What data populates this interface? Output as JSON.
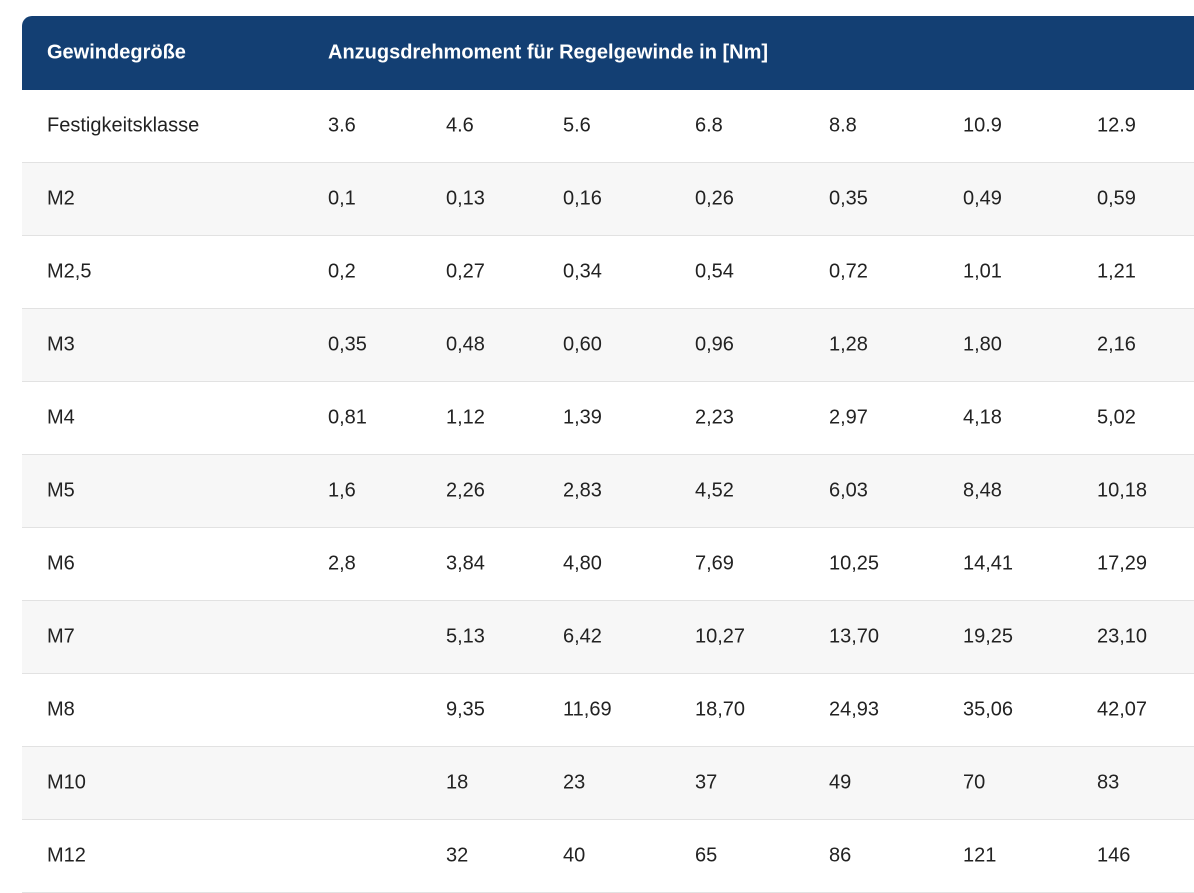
{
  "table": {
    "header": {
      "col_thread": "Gewindegröße",
      "col_torque": "Anzugsdrehmoment für Regelgewinde in [Nm]"
    },
    "rows": [
      {
        "label": "Festigkeitsklasse",
        "v": [
          "3.6",
          "4.6",
          "5.6",
          "6.8",
          "8.8",
          "10.9",
          "12.9"
        ]
      },
      {
        "label": "M2",
        "v": [
          "0,1",
          "0,13",
          "0,16",
          "0,26",
          "0,35",
          "0,49",
          "0,59"
        ]
      },
      {
        "label": "M2,5",
        "v": [
          "0,2",
          "0,27",
          "0,34",
          "0,54",
          "0,72",
          "1,01",
          "1,21"
        ]
      },
      {
        "label": "M3",
        "v": [
          "0,35",
          "0,48",
          "0,60",
          "0,96",
          "1,28",
          "1,80",
          "2,16"
        ]
      },
      {
        "label": "M4",
        "v": [
          "0,81",
          "1,12",
          "1,39",
          "2,23",
          "2,97",
          "4,18",
          "5,02"
        ]
      },
      {
        "label": "M5",
        "v": [
          "1,6",
          "2,26",
          "2,83",
          "4,52",
          "6,03",
          "8,48",
          "10,18"
        ]
      },
      {
        "label": "M6",
        "v": [
          "2,8",
          "3,84",
          "4,80",
          "7,69",
          "10,25",
          "14,41",
          "17,29"
        ]
      },
      {
        "label": "M7",
        "v": [
          "",
          "5,13",
          "6,42",
          "10,27",
          "13,70",
          "19,25",
          "23,10"
        ]
      },
      {
        "label": "M8",
        "v": [
          "",
          "9,35",
          "11,69",
          "18,70",
          "24,93",
          "35,06",
          "42,07"
        ]
      },
      {
        "label": "M10",
        "v": [
          "",
          "18",
          "23",
          "37",
          "49",
          "70",
          "83"
        ]
      },
      {
        "label": "M12",
        "v": [
          "",
          "32",
          "40",
          "65",
          "86",
          "121",
          "146"
        ]
      }
    ]
  },
  "colors": {
    "header_bg": "#133f73",
    "header_text": "#ffffff",
    "row_alt_bg": "#f7f7f7",
    "divider": "#e2e2e2"
  }
}
